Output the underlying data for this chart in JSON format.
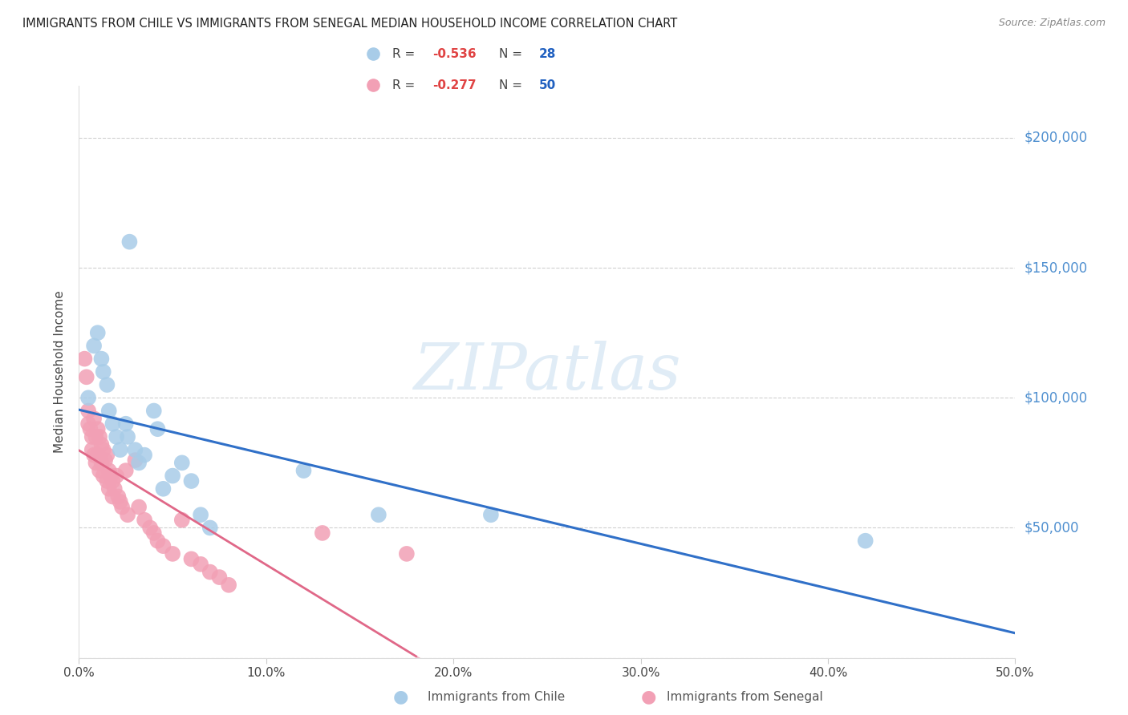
{
  "title": "IMMIGRANTS FROM CHILE VS IMMIGRANTS FROM SENEGAL MEDIAN HOUSEHOLD INCOME CORRELATION CHART",
  "source": "Source: ZipAtlas.com",
  "ylabel": "Median Household Income",
  "xlabel_ticks": [
    "0.0%",
    "10.0%",
    "20.0%",
    "30.0%",
    "40.0%",
    "50.0%"
  ],
  "xlabel_vals": [
    0.0,
    0.1,
    0.2,
    0.3,
    0.4,
    0.5
  ],
  "ylabel_ticks": [
    0,
    50000,
    100000,
    150000,
    200000
  ],
  "ylabel_labels": [
    "",
    "$50,000",
    "$100,000",
    "$150,000",
    "$200,000"
  ],
  "chile_R": "-0.536",
  "chile_N": "28",
  "senegal_R": "-0.277",
  "senegal_N": "50",
  "chile_color": "#a8cce8",
  "senegal_color": "#f2a0b5",
  "chile_line_color": "#3070c8",
  "senegal_line_color": "#e06888",
  "right_label_color": "#5090d0",
  "watermark_color": "#cce0f0",
  "chile_points_x": [
    0.005,
    0.008,
    0.01,
    0.012,
    0.013,
    0.015,
    0.016,
    0.018,
    0.02,
    0.022,
    0.025,
    0.026,
    0.03,
    0.032,
    0.035,
    0.04,
    0.042,
    0.045,
    0.05,
    0.055,
    0.06,
    0.065,
    0.07,
    0.12,
    0.16,
    0.22,
    0.027,
    0.42
  ],
  "chile_points_y": [
    100000,
    120000,
    125000,
    115000,
    110000,
    105000,
    95000,
    90000,
    85000,
    80000,
    90000,
    85000,
    80000,
    75000,
    78000,
    95000,
    88000,
    65000,
    70000,
    75000,
    68000,
    55000,
    50000,
    72000,
    55000,
    55000,
    160000,
    45000
  ],
  "senegal_points_x": [
    0.003,
    0.004,
    0.005,
    0.005,
    0.006,
    0.007,
    0.007,
    0.008,
    0.008,
    0.009,
    0.009,
    0.01,
    0.01,
    0.011,
    0.011,
    0.012,
    0.012,
    0.013,
    0.013,
    0.014,
    0.015,
    0.015,
    0.016,
    0.016,
    0.017,
    0.018,
    0.018,
    0.019,
    0.02,
    0.021,
    0.022,
    0.023,
    0.025,
    0.026,
    0.03,
    0.032,
    0.035,
    0.038,
    0.04,
    0.042,
    0.045,
    0.05,
    0.055,
    0.06,
    0.065,
    0.07,
    0.075,
    0.08,
    0.13,
    0.175
  ],
  "senegal_points_y": [
    115000,
    108000,
    95000,
    90000,
    88000,
    85000,
    80000,
    92000,
    78000,
    85000,
    75000,
    88000,
    78000,
    85000,
    72000,
    82000,
    75000,
    80000,
    70000,
    76000,
    78000,
    68000,
    72000,
    65000,
    70000,
    68000,
    62000,
    65000,
    70000,
    62000,
    60000,
    58000,
    72000,
    55000,
    76000,
    58000,
    53000,
    50000,
    48000,
    45000,
    43000,
    40000,
    53000,
    38000,
    36000,
    33000,
    31000,
    28000,
    48000,
    40000
  ]
}
